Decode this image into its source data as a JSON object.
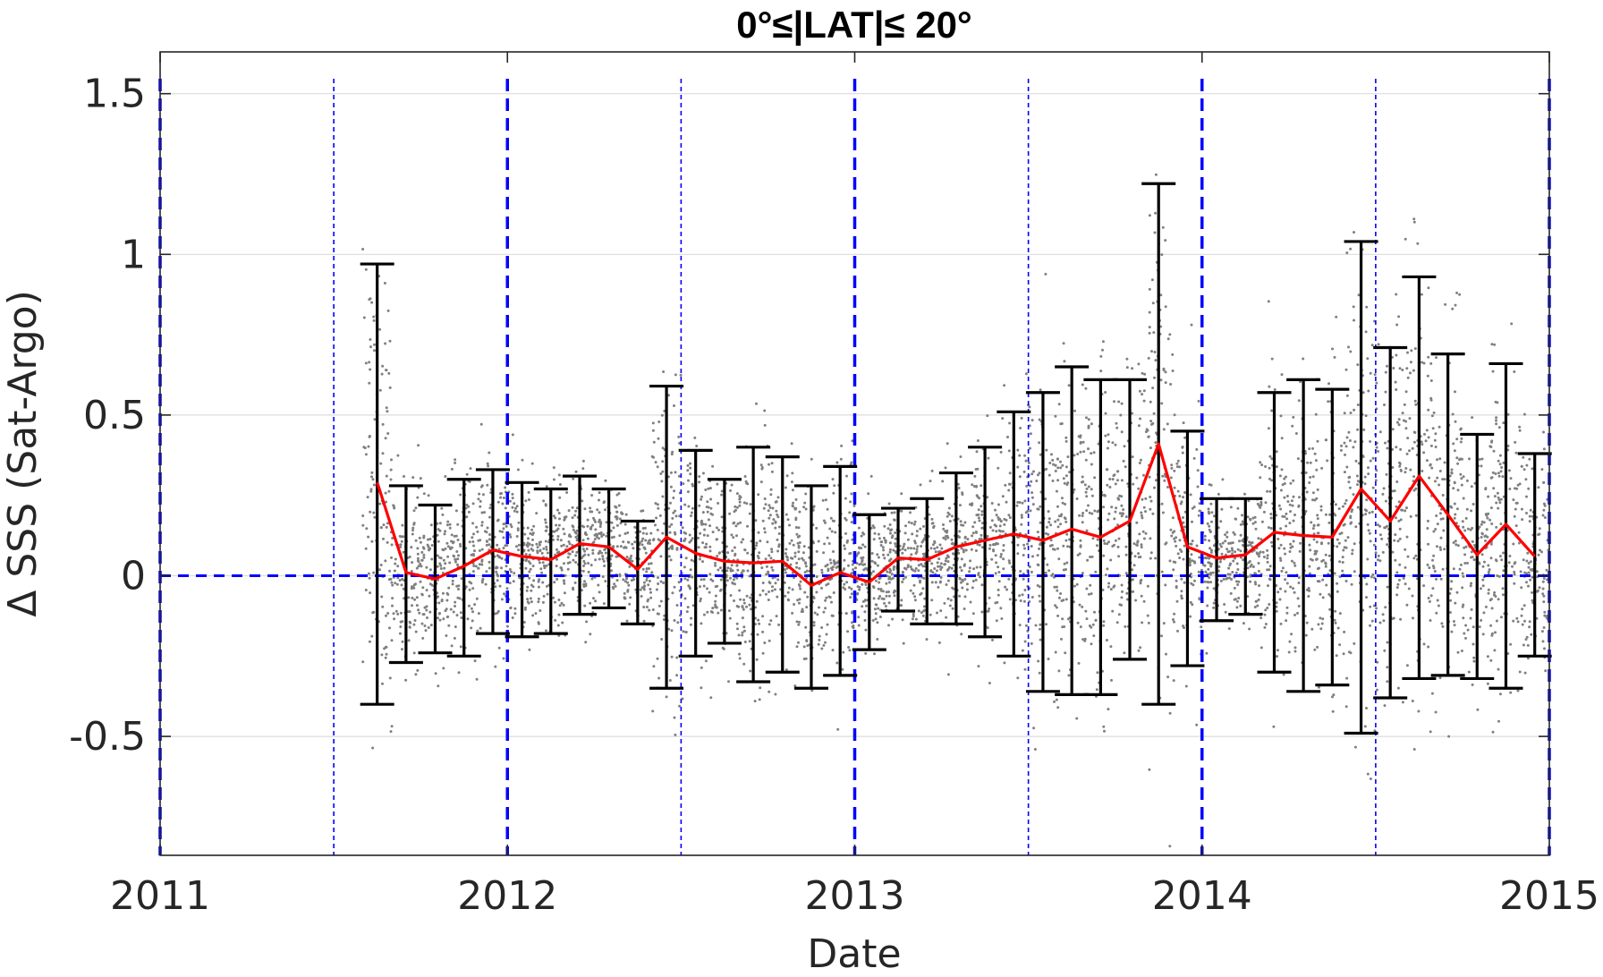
{
  "chart_data": {
    "type": "scatter",
    "title": "0°≤|LAT|≤ 20°",
    "xlabel": "Date",
    "ylabel": "Δ SSS (Sat-Argo)",
    "xlim": [
      2011,
      2015
    ],
    "ylim": [
      -0.87,
      1.63
    ],
    "x_ticks": [
      2011,
      2012,
      2013,
      2014,
      2015
    ],
    "x_tick_labels": [
      "2011",
      "2012",
      "2013",
      "2014",
      "2015"
    ],
    "y_ticks": [
      -0.5,
      0,
      0.5,
      1,
      1.5
    ],
    "y_tick_labels": [
      "-0.5",
      "0",
      "0.5",
      "1",
      "1.5"
    ],
    "grid": true,
    "colors": {
      "mean_line": "#ff0000",
      "error_bars": "#000000",
      "scatter_points": "#808080",
      "reference_lines": "#0000ff",
      "grid": "#dcdcdc",
      "axis": "#262626"
    },
    "reference_lines": {
      "zero_line_y": 0,
      "year_lines": [
        2011,
        2012,
        2013,
        2014,
        2015
      ],
      "half_year_lines": [
        2011.5,
        2012.5,
        2013.5,
        2014.5
      ]
    },
    "series": [
      {
        "type": "errorbar",
        "x": [
          2011.625,
          2011.708,
          2011.792,
          2011.875,
          2011.958,
          2012.042,
          2012.125,
          2012.208,
          2012.292,
          2012.375,
          2012.458,
          2012.542,
          2012.625,
          2012.708,
          2012.792,
          2012.875,
          2012.958,
          2013.042,
          2013.125,
          2013.208,
          2013.292,
          2013.375,
          2013.458,
          2013.542,
          2013.625,
          2013.708,
          2013.792,
          2013.875,
          2013.958,
          2014.042,
          2014.125,
          2014.208,
          2014.292,
          2014.375,
          2014.458,
          2014.542,
          2014.625,
          2014.708,
          2014.792,
          2014.875,
          2014.958
        ],
        "mean": [
          0.29,
          0.01,
          -0.01,
          0.03,
          0.08,
          0.06,
          0.05,
          0.1,
          0.09,
          0.02,
          0.12,
          0.07,
          0.045,
          0.04,
          0.045,
          -0.03,
          0.01,
          -0.02,
          0.055,
          0.05,
          0.09,
          0.11,
          0.13,
          0.11,
          0.145,
          0.12,
          0.17,
          0.41,
          0.09,
          0.055,
          0.065,
          0.135,
          0.125,
          0.12,
          0.27,
          0.17,
          0.31,
          0.19,
          0.065,
          0.16,
          0.06
        ],
        "upper": [
          0.97,
          0.28,
          0.22,
          0.3,
          0.33,
          0.29,
          0.27,
          0.31,
          0.27,
          0.17,
          0.59,
          0.39,
          0.3,
          0.4,
          0.37,
          0.28,
          0.34,
          0.19,
          0.21,
          0.24,
          0.32,
          0.4,
          0.51,
          0.57,
          0.65,
          0.61,
          0.61,
          1.22,
          0.45,
          0.24,
          0.24,
          0.57,
          0.61,
          0.58,
          1.04,
          0.71,
          0.93,
          0.69,
          0.44,
          0.66,
          0.38
        ],
        "lower": [
          -0.4,
          -0.27,
          -0.24,
          -0.25,
          -0.18,
          -0.19,
          -0.18,
          -0.12,
          -0.1,
          -0.15,
          -0.35,
          -0.25,
          -0.21,
          -0.33,
          -0.3,
          -0.35,
          -0.31,
          -0.23,
          -0.11,
          -0.15,
          -0.15,
          -0.19,
          -0.25,
          -0.36,
          -0.37,
          -0.37,
          -0.26,
          -0.4,
          -0.28,
          -0.14,
          -0.12,
          -0.3,
          -0.36,
          -0.34,
          -0.49,
          -0.38,
          -0.32,
          -0.31,
          -0.32,
          -0.35,
          -0.25
        ]
      }
    ],
    "scatter_note": "dense cloud of individual gray match-up points scattered around the monthly means"
  }
}
